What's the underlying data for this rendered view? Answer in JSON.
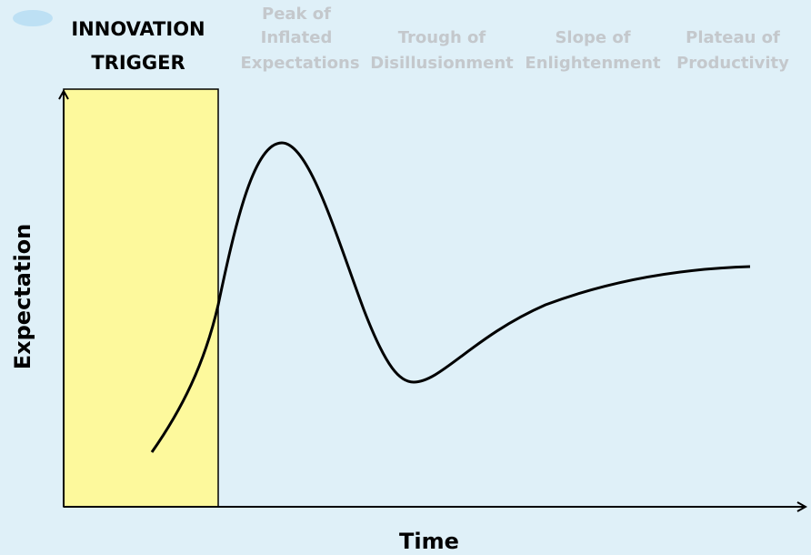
{
  "phases": [
    {
      "lines": [
        "INNOVATION",
        "TRIGGER"
      ]
    },
    {
      "lines": [
        "Peak of",
        "Inflated",
        "Expectations"
      ]
    },
    {
      "lines": [
        "Trough of",
        "Disillusionment"
      ]
    },
    {
      "lines": [
        "Slope of",
        "Enlightenment"
      ]
    },
    {
      "lines": [
        "Plateau of",
        "Productivity"
      ]
    }
  ],
  "axes": {
    "y_label": "Expectation",
    "x_label": "Time"
  }
}
